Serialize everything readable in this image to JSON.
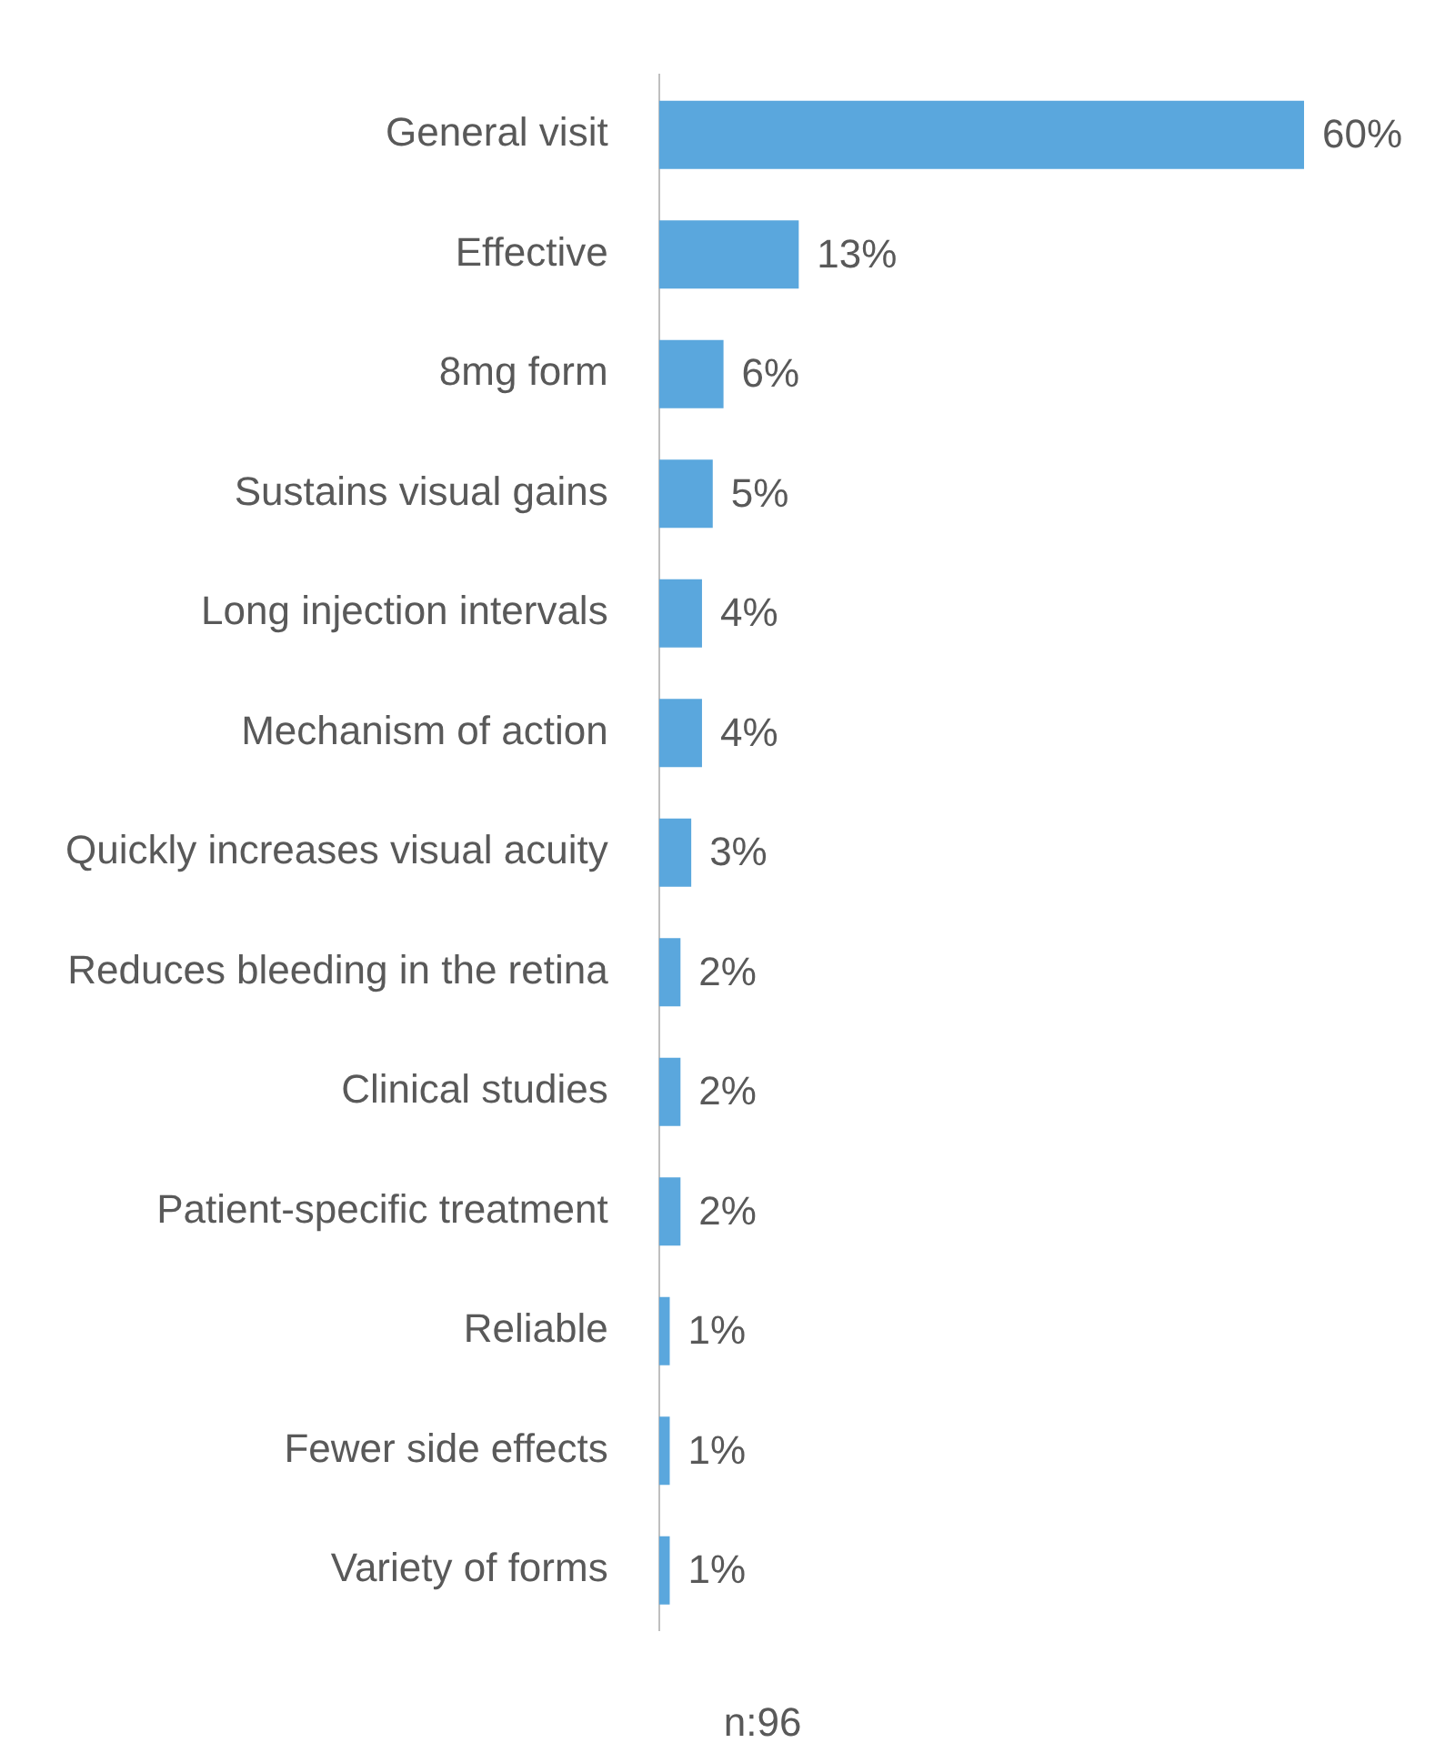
{
  "chart_data": {
    "type": "bar",
    "orientation": "horizontal",
    "categories": [
      "General visit",
      "Effective",
      "8mg form",
      "Sustains visual gains",
      "Long injection intervals",
      "Mechanism of action",
      "Quickly increases visual acuity",
      "Reduces bleeding in the retina",
      "Clinical studies",
      "Patient-specific treatment",
      "Reliable",
      "Fewer side effects",
      "Variety of forms"
    ],
    "values": [
      60,
      13,
      6,
      5,
      4,
      4,
      3,
      2,
      2,
      2,
      1,
      1,
      1
    ],
    "value_labels": [
      "60%",
      "13%",
      "6%",
      "5%",
      "4%",
      "4%",
      "3%",
      "2%",
      "2%",
      "2%",
      "1%",
      "1%",
      "1%"
    ],
    "color": "#5aa7dd",
    "legend": false,
    "annotations": [
      "n:96"
    ]
  }
}
